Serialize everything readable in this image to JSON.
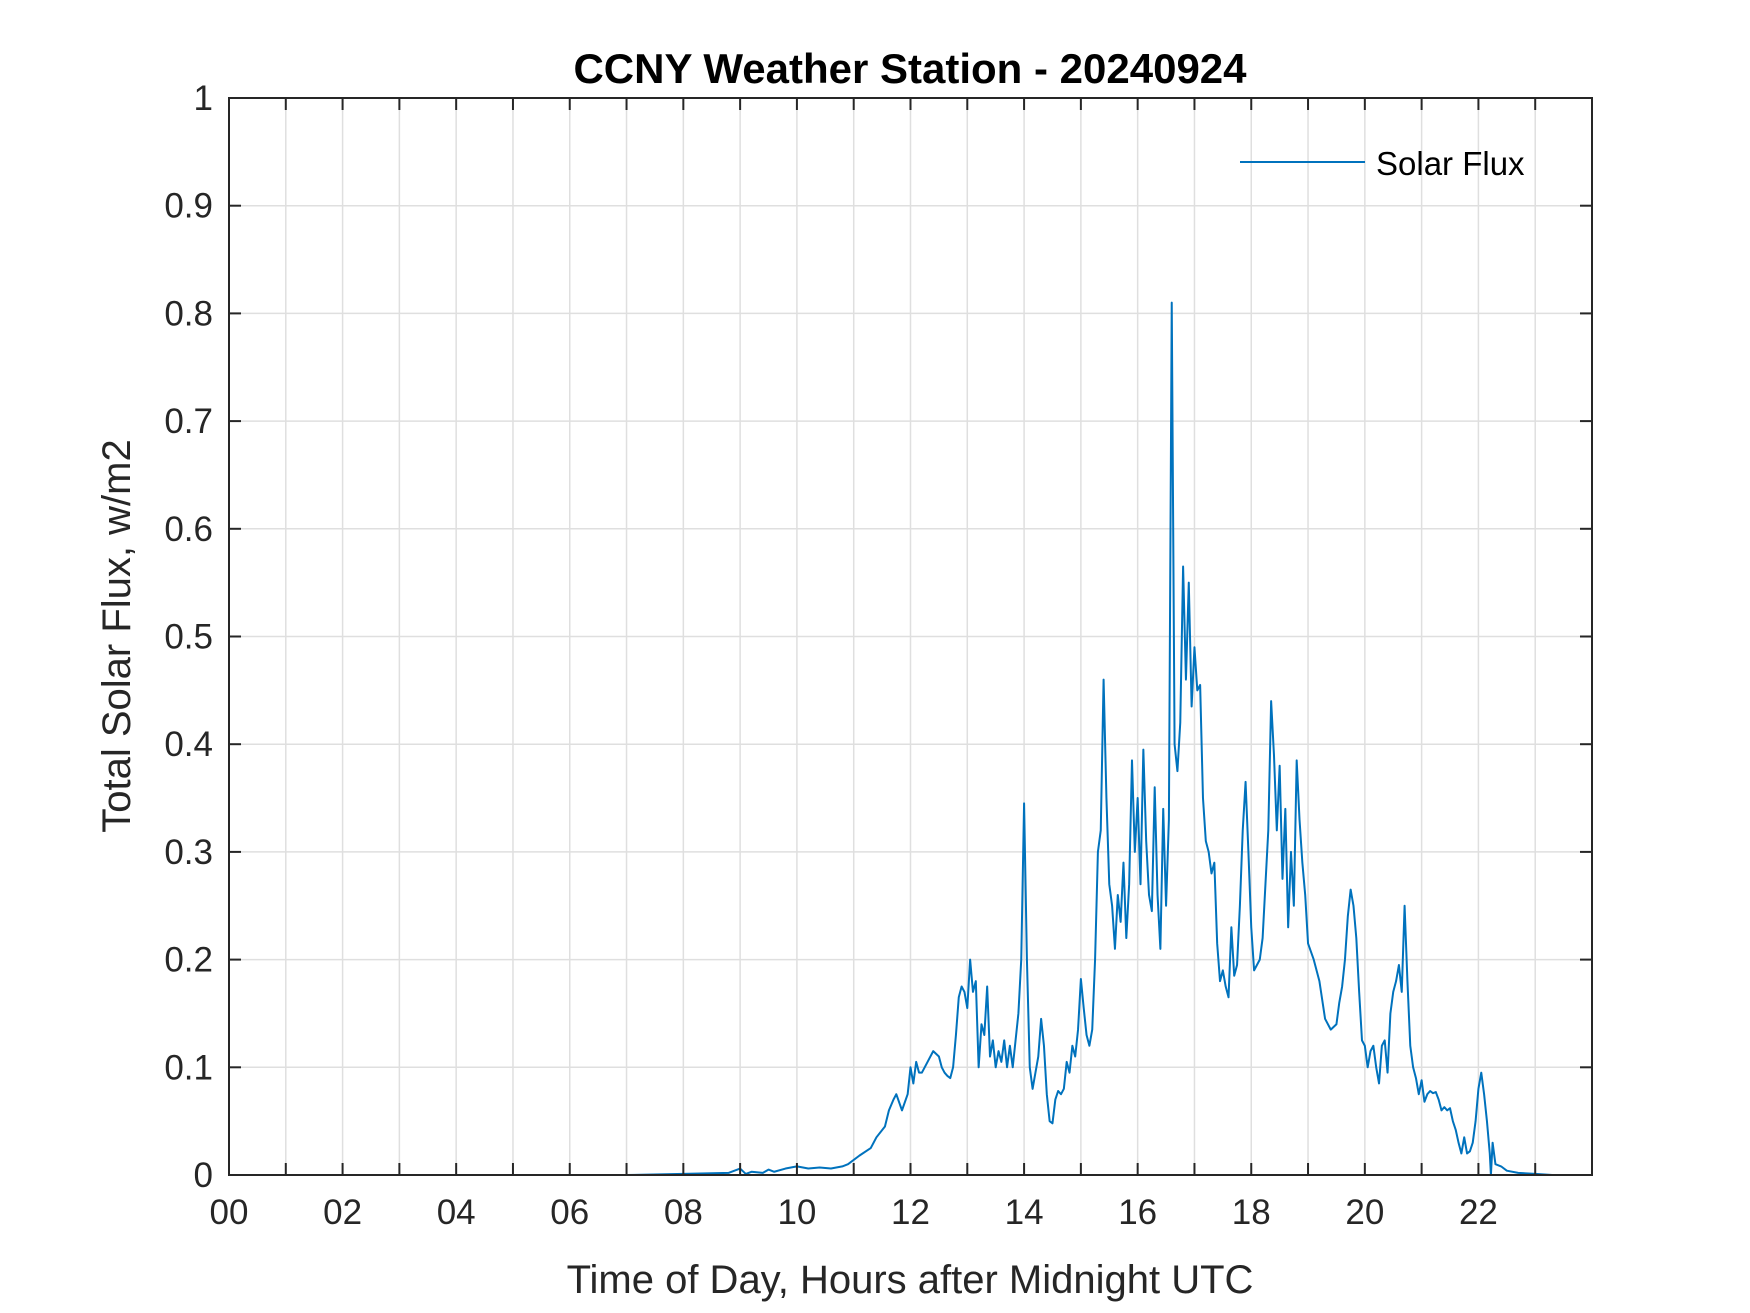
{
  "chart_data": {
    "type": "line",
    "title": "CCNY Weather Station - 20240924",
    "xlabel": "Time of Day, Hours after Midnight UTC",
    "ylabel": "Total Solar Flux, w/m2",
    "xlim": [
      0,
      24
    ],
    "ylim": [
      0,
      1
    ],
    "xticks": [
      0,
      2,
      4,
      6,
      8,
      10,
      12,
      14,
      16,
      18,
      20,
      22
    ],
    "xtick_labels": [
      "00",
      "02",
      "04",
      "06",
      "08",
      "10",
      "12",
      "14",
      "16",
      "18",
      "20",
      "22"
    ],
    "yticks": [
      0,
      0.1,
      0.2,
      0.3,
      0.4,
      0.5,
      0.6,
      0.7,
      0.8,
      0.9,
      1
    ],
    "ytick_labels": [
      "0",
      "0.1",
      "0.2",
      "0.3",
      "0.4",
      "0.5",
      "0.6",
      "0.7",
      "0.8",
      "0.9",
      "1"
    ],
    "grid": true,
    "legend": {
      "position": "top-right",
      "entries": [
        "Solar Flux"
      ]
    },
    "series": [
      {
        "name": "Solar Flux",
        "color": "#0072BD",
        "x": [
          0,
          7.0,
          8.0,
          8.8,
          9.0,
          9.1,
          9.2,
          9.4,
          9.5,
          9.6,
          9.8,
          10.0,
          10.2,
          10.4,
          10.6,
          10.8,
          10.9,
          11.1,
          11.3,
          11.4,
          11.55,
          11.62,
          11.7,
          11.75,
          11.85,
          11.95,
          12.0,
          12.05,
          12.1,
          12.15,
          12.2,
          12.3,
          12.4,
          12.5,
          12.55,
          12.6,
          12.65,
          12.7,
          12.75,
          12.8,
          12.85,
          12.9,
          12.95,
          13.0,
          13.05,
          13.1,
          13.15,
          13.2,
          13.25,
          13.3,
          13.35,
          13.4,
          13.45,
          13.5,
          13.55,
          13.6,
          13.65,
          13.7,
          13.75,
          13.8,
          13.85,
          13.9,
          13.95,
          14.0,
          14.05,
          14.1,
          14.15,
          14.2,
          14.25,
          14.3,
          14.35,
          14.4,
          14.45,
          14.5,
          14.55,
          14.6,
          14.65,
          14.7,
          14.75,
          14.8,
          14.85,
          14.9,
          14.95,
          15.0,
          15.05,
          15.1,
          15.15,
          15.2,
          15.25,
          15.3,
          15.35,
          15.4,
          15.45,
          15.5,
          15.55,
          15.6,
          15.65,
          15.7,
          15.75,
          15.8,
          15.85,
          15.9,
          15.95,
          16.0,
          16.05,
          16.1,
          16.15,
          16.2,
          16.25,
          16.3,
          16.35,
          16.4,
          16.45,
          16.5,
          16.55,
          16.6,
          16.65,
          16.7,
          16.75,
          16.8,
          16.85,
          16.9,
          16.95,
          17.0,
          17.05,
          17.1,
          17.15,
          17.2,
          17.25,
          17.3,
          17.35,
          17.4,
          17.45,
          17.5,
          17.55,
          17.6,
          17.65,
          17.7,
          17.75,
          17.8,
          17.85,
          17.9,
          17.95,
          18.0,
          18.05,
          18.1,
          18.15,
          18.2,
          18.25,
          18.3,
          18.35,
          18.4,
          18.45,
          18.5,
          18.55,
          18.6,
          18.65,
          18.7,
          18.75,
          18.8,
          18.85,
          18.9,
          18.95,
          19.0,
          19.1,
          19.2,
          19.3,
          19.4,
          19.5,
          19.55,
          19.6,
          19.65,
          19.7,
          19.75,
          19.8,
          19.85,
          19.9,
          19.95,
          20.0,
          20.05,
          20.1,
          20.15,
          20.2,
          20.25,
          20.3,
          20.35,
          20.4,
          20.45,
          20.5,
          20.55,
          20.6,
          20.65,
          20.7,
          20.75,
          20.8,
          20.85,
          20.9,
          20.95,
          21.0,
          21.05,
          21.1,
          21.15,
          21.2,
          21.25,
          21.3,
          21.35,
          21.4,
          21.45,
          21.5,
          21.55,
          21.6,
          21.65,
          21.7,
          21.75,
          21.8,
          21.85,
          21.9,
          21.95,
          22.0,
          22.05,
          22.1,
          22.15,
          22.2,
          22.22,
          22.25,
          22.3,
          22.4,
          22.5,
          22.7,
          23.0,
          23.3,
          24.0
        ],
        "y": [
          0,
          0,
          0.001,
          0.002,
          0.006,
          0.001,
          0.003,
          0.002,
          0.005,
          0.003,
          0.006,
          0.008,
          0.006,
          0.007,
          0.006,
          0.008,
          0.01,
          0.018,
          0.025,
          0.035,
          0.045,
          0.06,
          0.07,
          0.075,
          0.06,
          0.075,
          0.1,
          0.085,
          0.105,
          0.095,
          0.095,
          0.105,
          0.115,
          0.11,
          0.1,
          0.095,
          0.092,
          0.09,
          0.1,
          0.13,
          0.165,
          0.175,
          0.17,
          0.155,
          0.2,
          0.17,
          0.18,
          0.1,
          0.14,
          0.13,
          0.175,
          0.11,
          0.125,
          0.1,
          0.115,
          0.105,
          0.125,
          0.1,
          0.12,
          0.1,
          0.125,
          0.15,
          0.2,
          0.345,
          0.2,
          0.1,
          0.08,
          0.095,
          0.11,
          0.145,
          0.12,
          0.075,
          0.05,
          0.048,
          0.07,
          0.078,
          0.075,
          0.08,
          0.105,
          0.095,
          0.12,
          0.11,
          0.135,
          0.182,
          0.155,
          0.13,
          0.12,
          0.135,
          0.2,
          0.3,
          0.32,
          0.46,
          0.35,
          0.27,
          0.25,
          0.21,
          0.26,
          0.235,
          0.29,
          0.22,
          0.27,
          0.385,
          0.3,
          0.35,
          0.27,
          0.395,
          0.31,
          0.26,
          0.245,
          0.36,
          0.26,
          0.21,
          0.34,
          0.25,
          0.33,
          0.81,
          0.4,
          0.375,
          0.42,
          0.565,
          0.46,
          0.55,
          0.435,
          0.49,
          0.45,
          0.455,
          0.35,
          0.31,
          0.3,
          0.28,
          0.29,
          0.215,
          0.18,
          0.19,
          0.175,
          0.165,
          0.23,
          0.185,
          0.195,
          0.25,
          0.32,
          0.365,
          0.3,
          0.23,
          0.19,
          0.195,
          0.2,
          0.22,
          0.27,
          0.32,
          0.44,
          0.39,
          0.32,
          0.38,
          0.275,
          0.34,
          0.23,
          0.3,
          0.25,
          0.385,
          0.33,
          0.29,
          0.26,
          0.215,
          0.2,
          0.18,
          0.145,
          0.135,
          0.14,
          0.16,
          0.175,
          0.2,
          0.24,
          0.265,
          0.25,
          0.22,
          0.17,
          0.125,
          0.12,
          0.1,
          0.115,
          0.12,
          0.1,
          0.085,
          0.12,
          0.125,
          0.095,
          0.15,
          0.17,
          0.18,
          0.195,
          0.17,
          0.25,
          0.18,
          0.12,
          0.1,
          0.09,
          0.075,
          0.088,
          0.068,
          0.075,
          0.078,
          0.076,
          0.077,
          0.07,
          0.06,
          0.063,
          0.06,
          0.062,
          0.05,
          0.042,
          0.03,
          0.02,
          0.035,
          0.02,
          0.022,
          0.03,
          0.05,
          0.08,
          0.095,
          0.075,
          0.05,
          0.02,
          0,
          0.03,
          0.01,
          0.008,
          0.004,
          0.002,
          0.001,
          0,
          0
        ]
      }
    ]
  }
}
